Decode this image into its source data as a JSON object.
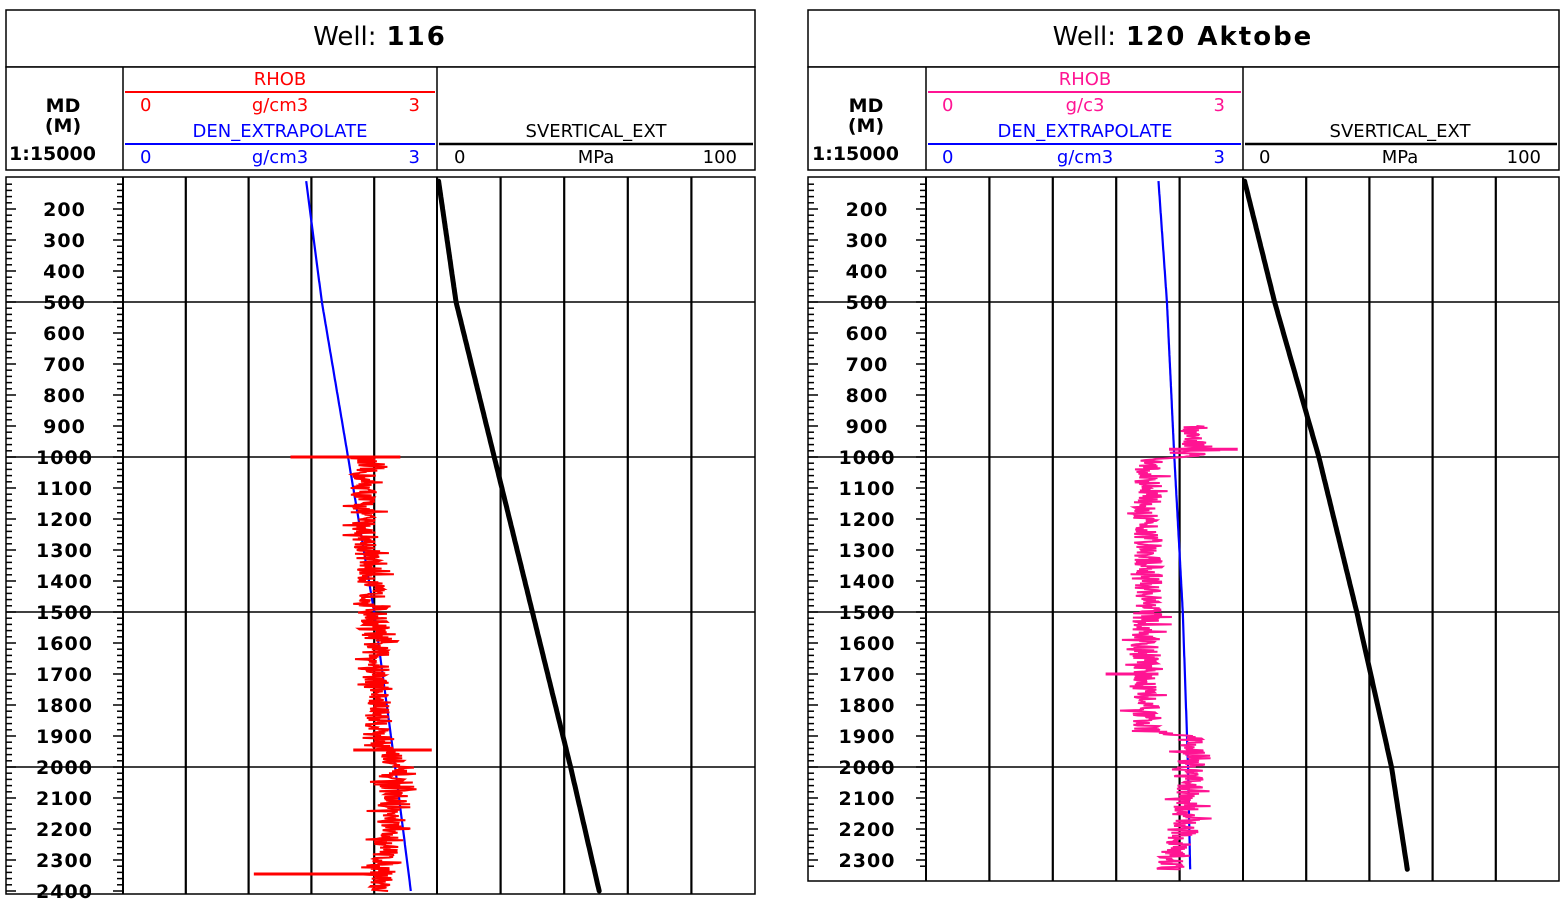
{
  "chart_data": [
    {
      "type": "line",
      "well_label": "Well:",
      "well_name": "116",
      "md_header": [
        "MD",
        "(M)",
        "1:15000"
      ],
      "tracks": {
        "rhob": {
          "name": "RHOB",
          "unit": "g/cm3",
          "min": "0",
          "max": "3",
          "color": "#ff0000"
        },
        "den": {
          "name": "DEN_EXTRAPOLATE",
          "unit": "g/cm3",
          "min": "0",
          "max": "3",
          "color": "#0000ff"
        },
        "sv": {
          "name": "SVERTICAL_EXT",
          "unit": "MPa",
          "min": "0",
          "max": "100",
          "color": "#000000"
        }
      },
      "depth_ticks": [
        200,
        300,
        400,
        500,
        600,
        700,
        800,
        900,
        1000,
        1100,
        1200,
        1300,
        1400,
        1500,
        1600,
        1700,
        1800,
        1900,
        2000,
        2100,
        2200,
        2300,
        2400
      ],
      "ylim": [
        110,
        2400
      ],
      "den_extrapolate": {
        "depth": [
          110,
          500,
          1000,
          1500,
          2000,
          2400
        ],
        "value": [
          1.75,
          1.9,
          2.15,
          2.4,
          2.6,
          2.75
        ]
      },
      "svertical_ext": {
        "depth": [
          110,
          500,
          1000,
          1500,
          2000,
          2400
        ],
        "value": [
          0.5,
          6,
          18,
          30,
          42,
          51
        ]
      },
      "rhob": {
        "depth_start": 1000,
        "depth_end": 2400,
        "base": [
          [
            1000,
            2.3
          ],
          [
            1200,
            2.3
          ],
          [
            1500,
            2.4
          ],
          [
            1900,
            2.45
          ],
          [
            2000,
            2.6
          ],
          [
            2300,
            2.5
          ],
          [
            2400,
            2.45
          ]
        ],
        "noise": 0.13,
        "spikes": [
          [
            1000,
            1.6,
            2.65
          ],
          [
            1945,
            2.2,
            2.95
          ],
          [
            2345,
            1.25,
            2.5
          ]
        ]
      }
    },
    {
      "type": "line",
      "well_label": "Well:",
      "well_name": "120 Aktobe",
      "md_header": [
        "MD",
        "(M)",
        "1:15000"
      ],
      "tracks": {
        "rhob": {
          "name": "RHOB",
          "unit": "g/c3",
          "min": "0",
          "max": "3",
          "color": "#ff1493"
        },
        "den": {
          "name": "DEN_EXTRAPOLATE",
          "unit": "g/cm3",
          "min": "0",
          "max": "3",
          "color": "#0000ff"
        },
        "sv": {
          "name": "SVERTICAL_EXT",
          "unit": "MPa",
          "min": "0",
          "max": "100",
          "color": "#000000"
        }
      },
      "depth_ticks": [
        200,
        300,
        400,
        500,
        600,
        700,
        800,
        900,
        1000,
        1100,
        1200,
        1300,
        1400,
        1500,
        1600,
        1700,
        1800,
        1900,
        2000,
        2100,
        2200,
        2300
      ],
      "ylim": [
        110,
        2330
      ],
      "den_extrapolate": {
        "depth": [
          110,
          500,
          1000,
          1500,
          2000,
          2330
        ],
        "value": [
          2.2,
          2.28,
          2.35,
          2.43,
          2.48,
          2.5
        ]
      },
      "svertical_ext": {
        "depth": [
          110,
          500,
          1000,
          1500,
          2000,
          2330
        ],
        "value": [
          0.5,
          10,
          24,
          36,
          47,
          52
        ]
      },
      "rhob": {
        "depth_start": 900,
        "depth_end": 2330,
        "base": [
          [
            900,
            2.55
          ],
          [
            1000,
            2.55
          ],
          [
            1010,
            2.1
          ],
          [
            1500,
            2.1
          ],
          [
            1700,
            2.05
          ],
          [
            1880,
            2.1
          ],
          [
            1900,
            2.5
          ],
          [
            2000,
            2.5
          ],
          [
            2200,
            2.45
          ],
          [
            2330,
            2.3
          ]
        ],
        "noise": 0.14,
        "spikes": [
          [
            975,
            2.3,
            2.95
          ],
          [
            1700,
            1.7,
            2.2
          ]
        ]
      }
    }
  ]
}
